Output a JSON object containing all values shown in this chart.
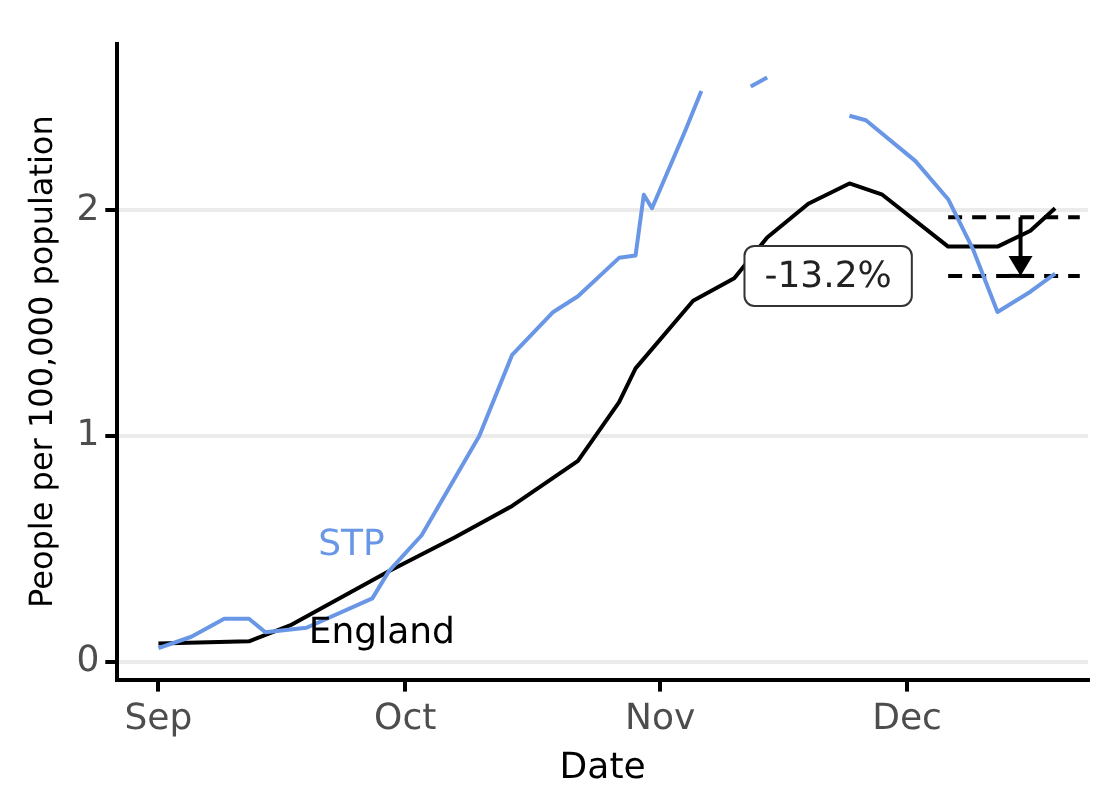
{
  "chart_data": {
    "type": "line",
    "xlabel": "Date",
    "ylabel": "People per 100,000 population",
    "xlim": [
      "--08-27",
      "--12-23"
    ],
    "xticks": [
      {
        "value": "--09-01",
        "label": "Sep"
      },
      {
        "value": "--10-01",
        "label": "Oct"
      },
      {
        "value": "--11-01",
        "label": "Nov"
      },
      {
        "value": "--12-01",
        "label": "Dec"
      }
    ],
    "ylim": [
      -0.08,
      2.74
    ],
    "yticks": [
      0,
      1,
      2
    ],
    "grid": "y",
    "legend": false,
    "line_style": "solid",
    "marker": "none",
    "series": [
      {
        "name": "STP",
        "color": "#6a96e6",
        "x": [
          "--09-01",
          "--09-05",
          "--09-09",
          "--09-12",
          "--09-14",
          "--09-19",
          "--09-27",
          "--09-29",
          "--10-03",
          "--10-10",
          "--10-14",
          "--10-19",
          "--10-22",
          "--10-27",
          "--10-29",
          "--10-30",
          "--10-31",
          "--11-04",
          "--11-06",
          "--11-07",
          "--11-08",
          "--11-09",
          "--11-12",
          "--11-14",
          "--11-16",
          "--11-17",
          "--11-18",
          "--11-24",
          "--11-26",
          "--12-02",
          "--12-06",
          "--12-09",
          "--12-12",
          "--12-16",
          "--12-19"
        ],
        "values": [
          0.06,
          0.11,
          0.19,
          0.19,
          0.13,
          0.15,
          0.28,
          0.4,
          0.56,
          1.0,
          1.36,
          1.55,
          1.62,
          1.79,
          1.8,
          2.07,
          2.01,
          2.35,
          2.53,
          null,
          null,
          null,
          2.55,
          2.59,
          null,
          null,
          null,
          2.42,
          2.4,
          2.22,
          2.05,
          1.83,
          1.55,
          1.64,
          1.72
        ]
      },
      {
        "name": "England",
        "color": "#000000",
        "x": [
          "--09-01",
          "--09-12",
          "--09-17",
          "--09-29",
          "--10-07",
          "--10-14",
          "--10-22",
          "--10-27",
          "--10-29",
          "--11-05",
          "--11-08",
          "--11-10",
          "--11-14",
          "--11-19",
          "--11-24",
          "--11-28",
          "--12-06",
          "--12-12",
          "--12-16",
          "--12-19"
        ],
        "values": [
          0.08,
          0.09,
          0.16,
          0.4,
          0.55,
          0.69,
          0.89,
          1.15,
          1.3,
          1.6,
          1.66,
          1.7,
          1.88,
          2.03,
          2.12,
          2.07,
          1.84,
          1.84,
          1.91,
          2.01
        ]
      },
      {
        "type": "line",
        "color": "#000000",
        "line_style": "dashed",
        "x": [
          "--12-06",
          "--12-22"
        ],
        "values": [
          1.97,
          1.97
        ]
      },
      {
        "type": "line",
        "color": "#000000",
        "line_style": "dashed",
        "x": [
          "--12-06",
          "--12-22"
        ],
        "values": [
          1.71,
          1.71
        ]
      }
    ],
    "annotations": [
      "-13.2%"
    ]
  }
}
